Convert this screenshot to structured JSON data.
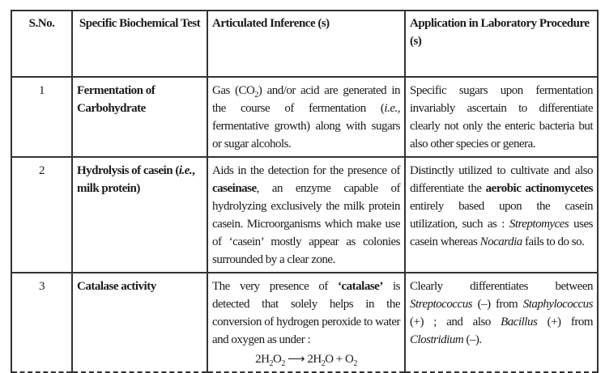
{
  "table": {
    "headers": [
      "S.No.",
      "Specific Biochemical Test",
      "Articulated Inference (s)",
      "Application in Laboratory Procedure (s)"
    ],
    "rows": [
      {
        "sno": "1",
        "test": [
          {
            "t": "Fermentation of Carbohydrate"
          }
        ],
        "inference": [
          {
            "t": "Gas (CO"
          },
          {
            "t": "2",
            "s": "sub"
          },
          {
            "t": ") and/or acid are generated in the course of fermentation ("
          },
          {
            "t": "i.e.",
            "s": "i"
          },
          {
            "t": ", fermentative growth) along with sugars or sugar alcohols."
          }
        ],
        "application": [
          {
            "t": "Specific sugars upon fermentation invariably ascertain to differentiate clearly not only the enteric bacteria but also other species or genera."
          }
        ]
      },
      {
        "sno": "2",
        "test": [
          {
            "t": "Hydrolysis of casein ("
          },
          {
            "t": "i.e.",
            "s": "bi"
          },
          {
            "t": ", milk protein)"
          }
        ],
        "inference": [
          {
            "t": "Aids in the detection for the presence of "
          },
          {
            "t": "caseinase",
            "s": "b"
          },
          {
            "t": ", an enzyme capable of hydrolyzing exclusively the milk protein casein. Microorganisms which make use of ‘casein’ mostly appear as colonies surrounded by a clear zone."
          }
        ],
        "application": [
          {
            "t": "Distinctly utilized to cultivate and also differentiate the "
          },
          {
            "t": "aerobic actinomycetes",
            "s": "b"
          },
          {
            "t": " entirely based upon the casein utilization, such as : "
          },
          {
            "t": "Streptomyces",
            "s": "i"
          },
          {
            "t": " uses casein whereas "
          },
          {
            "t": "Nocardia",
            "s": "i"
          },
          {
            "t": " fails to do so."
          }
        ]
      },
      {
        "sno": "3",
        "test": [
          {
            "t": "Catalase activity"
          }
        ],
        "inference": [
          {
            "t": "The very presence of "
          },
          {
            "t": "‘catalase’",
            "s": "b"
          },
          {
            "t": " is detected that solely helps in the conversion of hydrogen peroxide to water and oxygen as under :"
          }
        ],
        "equation": [
          {
            "t": "2H"
          },
          {
            "t": "2",
            "s": "sub"
          },
          {
            "t": "O"
          },
          {
            "t": "2",
            "s": "sub"
          },
          {
            "t": " ⟶ 2H"
          },
          {
            "t": "2",
            "s": "sub"
          },
          {
            "t": "O + O"
          },
          {
            "t": "2",
            "s": "sub"
          }
        ],
        "application": [
          {
            "t": "Clearly differentiates between "
          },
          {
            "t": "Streptococcus",
            "s": "i"
          },
          {
            "t": " (–) from "
          },
          {
            "t": "Staphylococcus",
            "s": "i"
          },
          {
            "t": " (+) ; and also "
          },
          {
            "t": "Bacillus",
            "s": "i"
          },
          {
            "t": " (+) from "
          },
          {
            "t": "Clostridium",
            "s": "i"
          },
          {
            "t": " (–)."
          }
        ]
      }
    ]
  }
}
